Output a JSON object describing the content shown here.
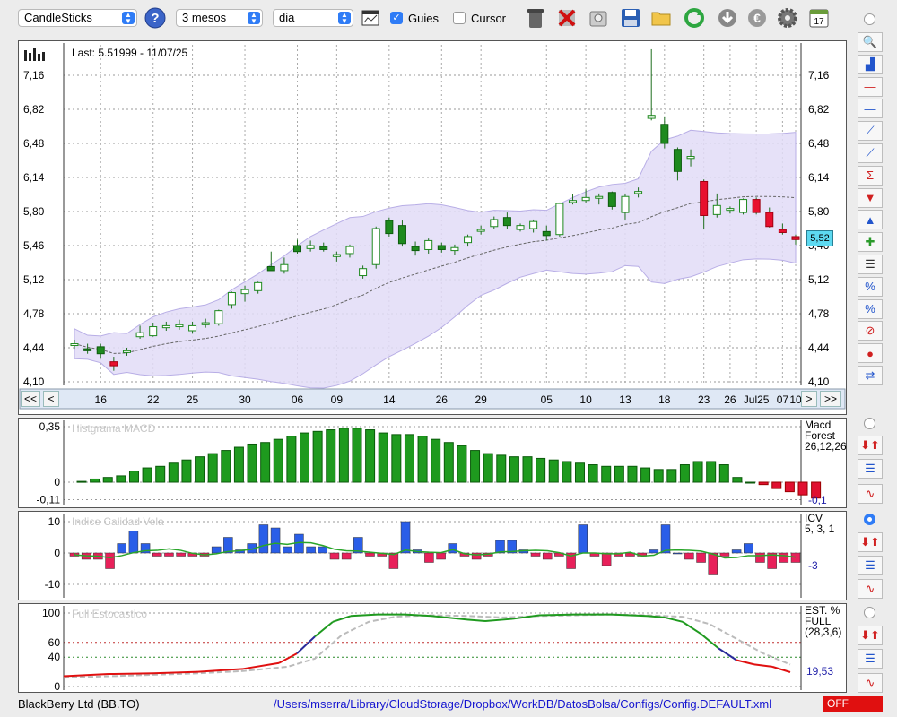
{
  "toolbar": {
    "chart_type": "CandleSticks",
    "period": "3 mesos",
    "interval": "dia",
    "guies_label": "Guies",
    "guies_checked": true,
    "cursor_label": "Cursor",
    "cursor_checked": false,
    "calendar_day": "17",
    "icons": [
      "help-icon",
      "chart-settings-icon",
      "trash-icon",
      "delete-icon",
      "clear-icon",
      "save-icon",
      "open-folder-icon",
      "refresh-icon",
      "download-icon",
      "currency-icon",
      "gear-icon",
      "calendar-icon"
    ]
  },
  "price_panel": {
    "last_label": "Last: 5.51999 - 11/07/25",
    "current_price_badge": "5,52",
    "nav": {
      "first": "<<",
      "prev": "<",
      "next": ">",
      "last": ">>"
    }
  },
  "macd_panel": {
    "title": "Histgrama MACD",
    "label_line1": "Macd",
    "label_line2": "Forest",
    "label_line3": "26,12,26",
    "value": "-0,1",
    "y_ticks": [
      "0,35",
      "0",
      "-0,11"
    ]
  },
  "icv_panel": {
    "title": "Indice Calidad Vela",
    "label_line1": "ICV",
    "label_line2": "5, 3, 1",
    "value": "-3",
    "y_ticks": [
      "10",
      "0",
      "-10"
    ]
  },
  "stoch_panel": {
    "title": "Full Estocastico",
    "label_line1": "EST. %",
    "label_line2": "FULL",
    "label_line3": "(28,3,6)",
    "value": "19,53",
    "y_ticks": [
      "100",
      "60",
      "40",
      "0"
    ]
  },
  "status": {
    "ticker": "BlackBerry Ltd (BB.TO)",
    "config_path": "/Users/mserra/Library/CloudStorage/Dropbox/WorkDB/DatosBolsa/Configs/Config.DEFAULT.xml",
    "off_label": "OFF"
  },
  "sidebar": {
    "icons": [
      "zoom-icon",
      "indicator-icon",
      "horizontal-line-icon",
      "horizontal-line-blue-icon",
      "channel-icon",
      "trendline-icon",
      "sum-trendline-icon",
      "arrow-down-icon",
      "arrow-up-icon",
      "arrow-mixed-icon",
      "lines-icon",
      "fib-percent-icon",
      "fib-percent-2-icon",
      "stop-icon",
      "record-icon",
      "swap-icon"
    ]
  },
  "sub_sidebar_icons": [
    "arrows-icon",
    "percent-icon",
    "curves-icon"
  ],
  "chart_data": {
    "type": "candlestick",
    "y_ticks": [
      "7,16",
      "6,82",
      "6,48",
      "6,14",
      "5,80",
      "5,46",
      "5,12",
      "4,78",
      "4,44",
      "4,10"
    ],
    "x_ticks": [
      "16",
      "22",
      "25",
      "30",
      "06",
      "09",
      "14",
      "26",
      "29",
      "05",
      "10",
      "13",
      "18",
      "23",
      "26",
      "Jul25",
      "07",
      "10"
    ],
    "ylim": [
      4.1,
      7.3
    ],
    "candles": [
      {
        "o": 4.47,
        "h": 4.52,
        "l": 4.43,
        "c": 4.48
      },
      {
        "o": 4.43,
        "h": 4.48,
        "l": 4.38,
        "c": 4.41
      },
      {
        "o": 4.45,
        "h": 4.48,
        "l": 4.33,
        "c": 4.38
      },
      {
        "o": 4.3,
        "h": 4.35,
        "l": 4.21,
        "c": 4.26
      },
      {
        "o": 4.4,
        "h": 4.44,
        "l": 4.36,
        "c": 4.41
      },
      {
        "o": 4.55,
        "h": 4.66,
        "l": 4.53,
        "c": 4.59
      },
      {
        "o": 4.56,
        "h": 4.69,
        "l": 4.55,
        "c": 4.65
      },
      {
        "o": 4.64,
        "h": 4.7,
        "l": 4.61,
        "c": 4.66
      },
      {
        "o": 4.65,
        "h": 4.72,
        "l": 4.62,
        "c": 4.67
      },
      {
        "o": 4.61,
        "h": 4.7,
        "l": 4.58,
        "c": 4.66
      },
      {
        "o": 4.67,
        "h": 4.73,
        "l": 4.64,
        "c": 4.69
      },
      {
        "o": 4.68,
        "h": 4.82,
        "l": 4.66,
        "c": 4.81
      },
      {
        "o": 4.87,
        "h": 5.0,
        "l": 4.83,
        "c": 4.99
      },
      {
        "o": 4.98,
        "h": 5.06,
        "l": 4.9,
        "c": 5.02
      },
      {
        "o": 5.01,
        "h": 5.1,
        "l": 4.98,
        "c": 5.09
      },
      {
        "o": 5.25,
        "h": 5.4,
        "l": 5.21,
        "c": 5.21
      },
      {
        "o": 5.21,
        "h": 5.34,
        "l": 5.18,
        "c": 5.27
      },
      {
        "o": 5.46,
        "h": 5.52,
        "l": 5.38,
        "c": 5.4
      },
      {
        "o": 5.43,
        "h": 5.51,
        "l": 5.4,
        "c": 5.46
      },
      {
        "o": 5.45,
        "h": 5.49,
        "l": 5.4,
        "c": 5.42
      },
      {
        "o": 5.35,
        "h": 5.4,
        "l": 5.3,
        "c": 5.37
      },
      {
        "o": 5.38,
        "h": 5.47,
        "l": 5.34,
        "c": 5.45
      },
      {
        "o": 5.16,
        "h": 5.26,
        "l": 5.13,
        "c": 5.23
      },
      {
        "o": 5.27,
        "h": 5.65,
        "l": 5.23,
        "c": 5.63
      },
      {
        "o": 5.71,
        "h": 5.74,
        "l": 5.55,
        "c": 5.58
      },
      {
        "o": 5.66,
        "h": 5.71,
        "l": 5.45,
        "c": 5.48
      },
      {
        "o": 5.45,
        "h": 5.5,
        "l": 5.36,
        "c": 5.41
      },
      {
        "o": 5.42,
        "h": 5.53,
        "l": 5.38,
        "c": 5.51
      },
      {
        "o": 5.46,
        "h": 5.49,
        "l": 5.39,
        "c": 5.42
      },
      {
        "o": 5.41,
        "h": 5.47,
        "l": 5.37,
        "c": 5.44
      },
      {
        "o": 5.49,
        "h": 5.57,
        "l": 5.45,
        "c": 5.55
      },
      {
        "o": 5.61,
        "h": 5.66,
        "l": 5.57,
        "c": 5.62
      },
      {
        "o": 5.65,
        "h": 5.75,
        "l": 5.63,
        "c": 5.72
      },
      {
        "o": 5.74,
        "h": 5.79,
        "l": 5.63,
        "c": 5.66
      },
      {
        "o": 5.62,
        "h": 5.68,
        "l": 5.6,
        "c": 5.66
      },
      {
        "o": 5.63,
        "h": 5.72,
        "l": 5.59,
        "c": 5.7
      },
      {
        "o": 5.6,
        "h": 5.66,
        "l": 5.51,
        "c": 5.56
      },
      {
        "o": 5.57,
        "h": 5.89,
        "l": 5.55,
        "c": 5.88
      },
      {
        "o": 5.89,
        "h": 5.97,
        "l": 5.87,
        "c": 5.91
      },
      {
        "o": 5.91,
        "h": 6.02,
        "l": 5.89,
        "c": 5.94
      },
      {
        "o": 5.94,
        "h": 5.98,
        "l": 5.87,
        "c": 5.95
      },
      {
        "o": 5.99,
        "h": 6.0,
        "l": 5.82,
        "c": 5.85
      },
      {
        "o": 5.79,
        "h": 5.97,
        "l": 5.72,
        "c": 5.95
      },
      {
        "o": 5.98,
        "h": 6.04,
        "l": 5.94,
        "c": 6.0
      },
      {
        "o": 6.73,
        "h": 7.42,
        "l": 6.71,
        "c": 6.76
      },
      {
        "o": 6.67,
        "h": 6.75,
        "l": 6.43,
        "c": 6.48
      },
      {
        "o": 6.42,
        "h": 6.44,
        "l": 6.11,
        "c": 6.2
      },
      {
        "o": 6.33,
        "h": 6.42,
        "l": 6.25,
        "c": 6.35
      },
      {
        "o": 6.1,
        "h": 6.12,
        "l": 5.63,
        "c": 5.76
      },
      {
        "o": 5.77,
        "h": 5.98,
        "l": 5.74,
        "c": 5.86
      },
      {
        "o": 5.82,
        "h": 5.85,
        "l": 5.78,
        "c": 5.83
      },
      {
        "o": 5.79,
        "h": 5.93,
        "l": 5.77,
        "c": 5.92
      },
      {
        "o": 5.92,
        "h": 5.94,
        "l": 5.77,
        "c": 5.79
      },
      {
        "o": 5.79,
        "h": 5.84,
        "l": 5.64,
        "c": 5.65
      },
      {
        "o": 5.62,
        "h": 5.68,
        "l": 5.57,
        "c": 5.59
      },
      {
        "o": 5.55,
        "h": 5.57,
        "l": 5.47,
        "c": 5.52
      }
    ],
    "macd_hist": [
      0.005,
      0.02,
      0.03,
      0.04,
      0.07,
      0.09,
      0.1,
      0.12,
      0.14,
      0.16,
      0.18,
      0.2,
      0.22,
      0.24,
      0.25,
      0.27,
      0.29,
      0.31,
      0.32,
      0.33,
      0.34,
      0.34,
      0.33,
      0.31,
      0.3,
      0.3,
      0.29,
      0.27,
      0.25,
      0.23,
      0.2,
      0.18,
      0.17,
      0.16,
      0.16,
      0.15,
      0.14,
      0.13,
      0.12,
      0.11,
      0.1,
      0.1,
      0.1,
      0.09,
      0.08,
      0.08,
      0.11,
      0.13,
      0.13,
      0.11,
      0.03,
      0,
      -0.015,
      -0.04,
      -0.06,
      -0.08,
      -0.1
    ],
    "icv": [
      -1,
      -2,
      -2,
      -5,
      3,
      7,
      3,
      -1,
      -1,
      -1,
      -1,
      -1,
      2,
      5,
      1,
      3,
      9,
      8,
      2,
      6,
      2,
      2,
      -2,
      -2,
      5,
      -1,
      -1,
      -5,
      10,
      1,
      -3,
      -2,
      3,
      -1,
      -2,
      -1,
      4,
      4,
      1,
      -1,
      -2,
      -1,
      -5,
      9,
      -1,
      -4,
      -1,
      -1,
      -1,
      1,
      9,
      0,
      -2,
      -3,
      -7,
      -1,
      1,
      3,
      -3,
      -5,
      -3,
      -3
    ]
  }
}
